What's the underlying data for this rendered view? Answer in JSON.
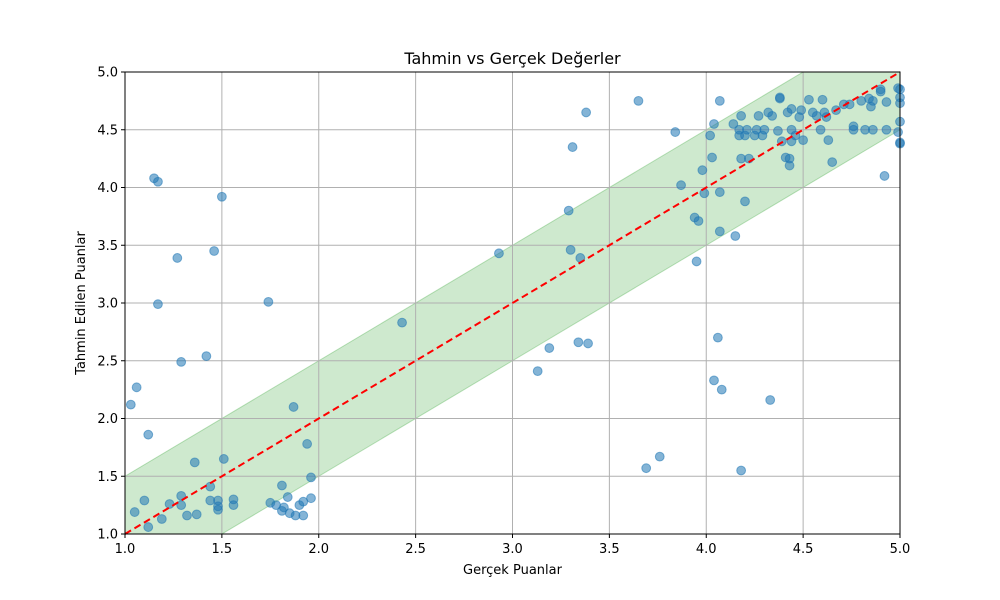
{
  "chart_data": {
    "type": "scatter",
    "title": "Tahmin vs Gerçek Değerler",
    "xlabel": "Gerçek Puanlar",
    "ylabel": "Tahmin Edilen Puanlar",
    "xlim": [
      1.0,
      5.0
    ],
    "ylim": [
      1.0,
      5.0
    ],
    "xticks": [
      "1.0",
      "1.5",
      "2.0",
      "2.5",
      "3.0",
      "3.5",
      "4.0",
      "4.5",
      "5.0"
    ],
    "yticks": [
      "1.0",
      "1.5",
      "2.0",
      "2.5",
      "3.0",
      "3.5",
      "4.0",
      "4.5",
      "5.0"
    ],
    "grid": true,
    "colors": {
      "points": "#1f77b4",
      "band": "#2ca02c",
      "reference_line": "#ff0000"
    },
    "reference_line": {
      "type": "y=x",
      "style": "dashed"
    },
    "tolerance_band": {
      "offset": 0.5
    },
    "points": [
      [
        1.03,
        2.12
      ],
      [
        1.05,
        1.19
      ],
      [
        1.06,
        2.27
      ],
      [
        1.1,
        1.29
      ],
      [
        1.12,
        1.86
      ],
      [
        1.12,
        1.06
      ],
      [
        1.15,
        4.08
      ],
      [
        1.17,
        4.05
      ],
      [
        1.17,
        2.99
      ],
      [
        1.19,
        1.13
      ],
      [
        1.23,
        1.26
      ],
      [
        1.27,
        3.39
      ],
      [
        1.29,
        2.49
      ],
      [
        1.29,
        1.33
      ],
      [
        1.29,
        1.25
      ],
      [
        1.32,
        1.16
      ],
      [
        1.36,
        1.62
      ],
      [
        1.37,
        1.17
      ],
      [
        1.42,
        2.54
      ],
      [
        1.44,
        1.41
      ],
      [
        1.44,
        1.29
      ],
      [
        1.46,
        3.45
      ],
      [
        1.48,
        1.24
      ],
      [
        1.48,
        1.29
      ],
      [
        1.48,
        1.21
      ],
      [
        1.5,
        3.92
      ],
      [
        1.51,
        1.65
      ],
      [
        1.56,
        1.3
      ],
      [
        1.56,
        1.25
      ],
      [
        1.74,
        3.01
      ],
      [
        1.75,
        1.27
      ],
      [
        1.78,
        1.25
      ],
      [
        1.81,
        1.42
      ],
      [
        1.81,
        1.2
      ],
      [
        1.82,
        1.23
      ],
      [
        1.84,
        1.32
      ],
      [
        1.85,
        1.18
      ],
      [
        1.87,
        2.1
      ],
      [
        1.88,
        1.16
      ],
      [
        1.9,
        1.25
      ],
      [
        1.92,
        1.28
      ],
      [
        1.92,
        1.16
      ],
      [
        1.94,
        1.78
      ],
      [
        1.96,
        1.49
      ],
      [
        1.96,
        1.31
      ],
      [
        2.43,
        2.83
      ],
      [
        2.93,
        3.43
      ],
      [
        3.13,
        2.41
      ],
      [
        3.19,
        2.61
      ],
      [
        3.29,
        3.8
      ],
      [
        3.3,
        3.46
      ],
      [
        3.31,
        4.35
      ],
      [
        3.34,
        2.66
      ],
      [
        3.35,
        3.39
      ],
      [
        3.38,
        4.65
      ],
      [
        3.39,
        2.65
      ],
      [
        3.65,
        4.75
      ],
      [
        3.69,
        1.57
      ],
      [
        3.76,
        1.67
      ],
      [
        3.84,
        4.48
      ],
      [
        3.87,
        4.02
      ],
      [
        3.94,
        3.74
      ],
      [
        3.95,
        3.36
      ],
      [
        3.96,
        3.71
      ],
      [
        3.98,
        4.15
      ],
      [
        3.99,
        3.95
      ],
      [
        4.02,
        4.45
      ],
      [
        4.03,
        4.26
      ],
      [
        4.04,
        4.55
      ],
      [
        4.04,
        2.33
      ],
      [
        4.06,
        2.7
      ],
      [
        4.07,
        4.75
      ],
      [
        4.07,
        3.62
      ],
      [
        4.07,
        3.96
      ],
      [
        4.08,
        2.25
      ],
      [
        4.14,
        4.55
      ],
      [
        4.15,
        3.58
      ],
      [
        4.17,
        4.5
      ],
      [
        4.17,
        4.45
      ],
      [
        4.18,
        4.62
      ],
      [
        4.18,
        4.25
      ],
      [
        4.18,
        1.55
      ],
      [
        4.2,
        3.88
      ],
      [
        4.2,
        4.45
      ],
      [
        4.21,
        4.5
      ],
      [
        4.22,
        4.25
      ],
      [
        4.25,
        4.45
      ],
      [
        4.26,
        4.5
      ],
      [
        4.27,
        4.62
      ],
      [
        4.29,
        4.45
      ],
      [
        4.3,
        4.5
      ],
      [
        4.32,
        4.65
      ],
      [
        4.33,
        2.16
      ],
      [
        4.34,
        4.62
      ],
      [
        4.37,
        4.49
      ],
      [
        4.38,
        4.77
      ],
      [
        4.38,
        4.78
      ],
      [
        4.39,
        4.4
      ],
      [
        4.41,
        4.26
      ],
      [
        4.42,
        4.65
      ],
      [
        4.43,
        4.25
      ],
      [
        4.43,
        4.19
      ],
      [
        4.44,
        4.5
      ],
      [
        4.44,
        4.4
      ],
      [
        4.44,
        4.68
      ],
      [
        4.46,
        4.45
      ],
      [
        4.48,
        4.61
      ],
      [
        4.49,
        4.67
      ],
      [
        4.5,
        4.41
      ],
      [
        4.53,
        4.76
      ],
      [
        4.55,
        4.65
      ],
      [
        4.57,
        4.62
      ],
      [
        4.59,
        4.5
      ],
      [
        4.6,
        4.76
      ],
      [
        4.61,
        4.65
      ],
      [
        4.62,
        4.61
      ],
      [
        4.63,
        4.41
      ],
      [
        4.65,
        4.22
      ],
      [
        4.67,
        4.67
      ],
      [
        4.71,
        4.72
      ],
      [
        4.74,
        4.72
      ],
      [
        4.76,
        4.53
      ],
      [
        4.76,
        4.5
      ],
      [
        4.8,
        4.75
      ],
      [
        4.82,
        4.5
      ],
      [
        4.84,
        4.77
      ],
      [
        4.85,
        4.7
      ],
      [
        4.86,
        4.75
      ],
      [
        4.86,
        4.5
      ],
      [
        4.9,
        4.85
      ],
      [
        4.9,
        4.83
      ],
      [
        4.92,
        4.1
      ],
      [
        4.93,
        4.74
      ],
      [
        4.93,
        4.5
      ],
      [
        4.99,
        4.86
      ],
      [
        4.99,
        4.48
      ],
      [
        5.0,
        4.85
      ],
      [
        5.0,
        4.78
      ],
      [
        5.0,
        4.73
      ],
      [
        5.0,
        4.57
      ],
      [
        5.0,
        4.39
      ],
      [
        5.0,
        4.38
      ]
    ]
  }
}
